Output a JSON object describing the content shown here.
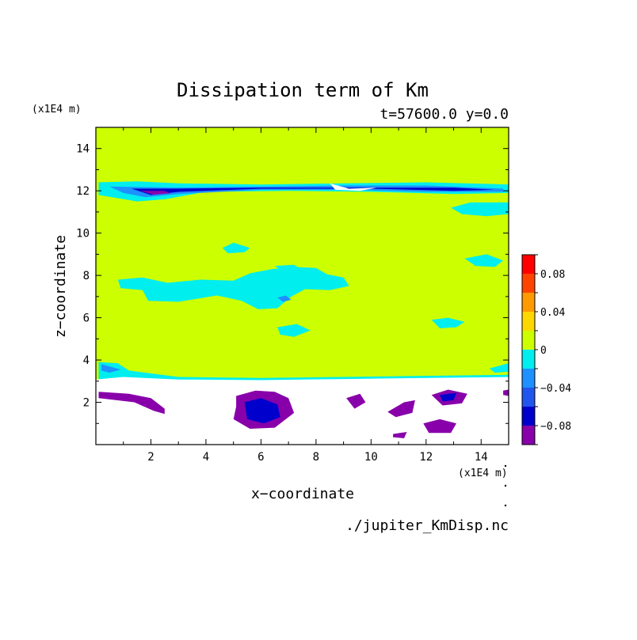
{
  "chart_data": {
    "type": "heatmap",
    "title": "Dissipation term of Km",
    "subtitle": "t=57600.0 y=0.0",
    "xlabel": "x−coordinate",
    "ylabel": "z−coordinate",
    "x_unit": "(x1E4 m)",
    "y_unit": "(x1E4 m)",
    "source_file": "./jupiter_KmDisp.nc",
    "xlim": [
      0,
      15
    ],
    "ylim": [
      0,
      15
    ],
    "x_ticks": [
      2,
      4,
      6,
      8,
      10,
      12,
      14
    ],
    "y_ticks": [
      2,
      4,
      6,
      8,
      10,
      12,
      14
    ],
    "x_tick_labels": [
      "2",
      "4",
      "6",
      "8",
      "10",
      "12",
      "14"
    ],
    "y_tick_labels": [
      "2",
      "4",
      "6",
      "8",
      "10",
      "12",
      "14"
    ],
    "colorbar": {
      "levels": [
        -0.1,
        -0.08,
        -0.06,
        -0.04,
        -0.02,
        0,
        0.02,
        0.04,
        0.06,
        0.08,
        0.1
      ],
      "colors": [
        "#8800aa",
        "#0000cc",
        "#2255ee",
        "#1e90ff",
        "#00eeee",
        "#ccff00",
        "#ffd700",
        "#ff9900",
        "#ff4400",
        "#ff0000",
        "#ffaaaa"
      ],
      "labels": [
        {
          "value": -0.08,
          "text": "−0.08"
        },
        {
          "value": -0.04,
          "text": "−0.04"
        },
        {
          "value": 0,
          "text": "0"
        },
        {
          "value": 0.04,
          "text": "0.04"
        },
        {
          "value": 0.08,
          "text": "0.08"
        }
      ]
    },
    "background_value_color": "#ccff00",
    "undefined_region_color": "#ffffff",
    "regions": [
      {
        "level": -0.02,
        "points": [
          [
            0.1,
            12.4
          ],
          [
            1.5,
            12.45
          ],
          [
            3,
            12.35
          ],
          [
            6,
            12.3
          ],
          [
            9,
            12.35
          ],
          [
            12,
            12.4
          ],
          [
            15,
            12.3
          ],
          [
            15,
            11.9
          ],
          [
            13,
            11.85
          ],
          [
            10,
            11.95
          ],
          [
            7,
            12.0
          ],
          [
            4,
            11.95
          ],
          [
            2.5,
            11.6
          ],
          [
            1.5,
            11.5
          ],
          [
            0.1,
            11.8
          ]
        ]
      },
      {
        "level": -0.04,
        "points": [
          [
            0.5,
            12.2
          ],
          [
            3,
            12.15
          ],
          [
            6,
            12.2
          ],
          [
            9,
            12.25
          ],
          [
            12,
            12.25
          ],
          [
            14.8,
            12.1
          ],
          [
            14.8,
            11.95
          ],
          [
            12,
            11.95
          ],
          [
            9,
            12.05
          ],
          [
            6,
            12.05
          ],
          [
            3,
            11.85
          ],
          [
            1.8,
            11.7
          ],
          [
            1,
            11.9
          ]
        ]
      },
      {
        "level": -0.08,
        "points": [
          [
            1.3,
            12.1
          ],
          [
            2.8,
            12.1
          ],
          [
            6,
            12.15
          ],
          [
            10,
            12.15
          ],
          [
            13,
            12.15
          ],
          [
            14.5,
            12.05
          ],
          [
            13,
            12.0
          ],
          [
            10,
            12.1
          ],
          [
            6,
            12.1
          ],
          [
            3,
            11.95
          ],
          [
            2,
            11.8
          ]
        ]
      },
      {
        "level": -0.1,
        "points": [
          [
            1.6,
            12.0
          ],
          [
            2.5,
            12.0
          ],
          [
            2.7,
            11.88
          ],
          [
            2.1,
            11.82
          ]
        ]
      },
      {
        "level": -0.02,
        "points": [
          [
            12.9,
            11.2
          ],
          [
            13.6,
            11.45
          ],
          [
            15,
            11.45
          ],
          [
            15,
            10.9
          ],
          [
            14.2,
            10.8
          ],
          [
            13.3,
            10.9
          ]
        ]
      },
      {
        "level": -0.02,
        "points": [
          [
            4.6,
            9.3
          ],
          [
            5.0,
            9.55
          ],
          [
            5.6,
            9.3
          ],
          [
            5.4,
            9.1
          ],
          [
            4.8,
            9.05
          ]
        ]
      },
      {
        "level": -0.02,
        "points": [
          [
            13.4,
            8.8
          ],
          [
            14.2,
            9.0
          ],
          [
            14.8,
            8.7
          ],
          [
            14.5,
            8.4
          ],
          [
            13.8,
            8.45
          ]
        ]
      },
      {
        "level": -0.02,
        "points": [
          [
            0.8,
            7.8
          ],
          [
            1.7,
            7.9
          ],
          [
            2.6,
            7.65
          ],
          [
            3.8,
            7.8
          ],
          [
            5.0,
            7.75
          ],
          [
            5.6,
            8.1
          ],
          [
            6.4,
            8.3
          ],
          [
            7.2,
            8.4
          ],
          [
            8.0,
            8.35
          ],
          [
            8.4,
            8.05
          ],
          [
            9.0,
            7.9
          ],
          [
            9.2,
            7.5
          ],
          [
            8.5,
            7.3
          ],
          [
            7.6,
            7.35
          ],
          [
            7.1,
            7.0
          ],
          [
            6.6,
            6.45
          ],
          [
            5.9,
            6.4
          ],
          [
            5.3,
            6.8
          ],
          [
            4.4,
            7.05
          ],
          [
            3.0,
            6.75
          ],
          [
            1.9,
            6.8
          ],
          [
            1.7,
            7.3
          ],
          [
            0.9,
            7.4
          ]
        ]
      },
      {
        "level": -0.04,
        "points": [
          [
            6.6,
            6.95
          ],
          [
            6.9,
            7.05
          ],
          [
            7.1,
            6.85
          ],
          [
            6.8,
            6.75
          ]
        ]
      },
      {
        "level": -0.02,
        "points": [
          [
            6.5,
            8.45
          ],
          [
            7.2,
            8.5
          ],
          [
            7.6,
            8.2
          ],
          [
            6.9,
            8.1
          ]
        ]
      },
      {
        "level": -0.02,
        "points": [
          [
            12.2,
            5.9
          ],
          [
            12.8,
            6.0
          ],
          [
            13.4,
            5.8
          ],
          [
            13.1,
            5.55
          ],
          [
            12.5,
            5.5
          ]
        ]
      },
      {
        "level": -0.02,
        "points": [
          [
            6.6,
            5.55
          ],
          [
            7.3,
            5.7
          ],
          [
            7.8,
            5.4
          ],
          [
            7.2,
            5.1
          ],
          [
            6.7,
            5.2
          ]
        ]
      },
      {
        "level": -0.02,
        "points": [
          [
            0.1,
            3.9
          ],
          [
            0.8,
            3.85
          ],
          [
            1.2,
            3.5
          ],
          [
            3,
            3.2
          ],
          [
            6,
            3.15
          ],
          [
            9,
            3.2
          ],
          [
            12,
            3.25
          ],
          [
            15,
            3.3
          ],
          [
            15,
            3.05
          ],
          [
            13,
            2.85
          ],
          [
            11,
            2.75
          ],
          [
            9,
            2.65
          ],
          [
            7,
            2.85
          ],
          [
            5,
            2.9
          ],
          [
            3.5,
            2.4
          ],
          [
            2.5,
            2.6
          ],
          [
            1.5,
            2.9
          ],
          [
            0.1,
            3.1
          ]
        ]
      },
      {
        "level": -0.04,
        "points": [
          [
            0.2,
            3.8
          ],
          [
            0.9,
            3.55
          ],
          [
            0.5,
            3.4
          ],
          [
            0.2,
            3.5
          ]
        ]
      },
      {
        "level": -0.02,
        "points": [
          [
            14.3,
            3.6
          ],
          [
            15,
            3.85
          ],
          [
            15,
            3.45
          ],
          [
            14.5,
            3.4
          ]
        ]
      }
    ],
    "missing_regions": [
      {
        "points": [
          [
            0,
            3.08
          ],
          [
            1.0,
            3.2
          ],
          [
            3.0,
            3.08
          ],
          [
            6.0,
            3.05
          ],
          [
            9.0,
            3.1
          ],
          [
            12.0,
            3.15
          ],
          [
            15,
            3.2
          ],
          [
            15,
            0
          ],
          [
            0,
            0
          ]
        ]
      },
      {
        "points": [
          [
            8.5,
            12.35
          ],
          [
            9.2,
            12.1
          ],
          [
            10.2,
            12.15
          ],
          [
            9.6,
            12.0
          ],
          [
            8.7,
            12.05
          ]
        ]
      }
    ],
    "below_regions": [
      {
        "level": -0.1,
        "points": [
          [
            0.1,
            2.5
          ],
          [
            1.2,
            2.4
          ],
          [
            2.0,
            2.2
          ],
          [
            2.5,
            1.7
          ],
          [
            2.5,
            1.45
          ],
          [
            2.1,
            1.6
          ],
          [
            1.4,
            2.0
          ],
          [
            0.1,
            2.2
          ]
        ]
      },
      {
        "level": -0.1,
        "points": [
          [
            5.1,
            2.3
          ],
          [
            5.8,
            2.55
          ],
          [
            6.5,
            2.5
          ],
          [
            7.0,
            2.2
          ],
          [
            7.2,
            1.5
          ],
          [
            6.5,
            0.8
          ],
          [
            5.6,
            0.75
          ],
          [
            5.0,
            1.2
          ],
          [
            5.1,
            1.8
          ]
        ]
      },
      {
        "level": -0.08,
        "points": [
          [
            5.4,
            2.0
          ],
          [
            6.0,
            2.2
          ],
          [
            6.6,
            1.9
          ],
          [
            6.7,
            1.3
          ],
          [
            6.1,
            1.0
          ],
          [
            5.5,
            1.2
          ]
        ]
      },
      {
        "level": -0.1,
        "points": [
          [
            11.2,
            2.0
          ],
          [
            11.6,
            2.1
          ],
          [
            11.5,
            1.5
          ],
          [
            10.9,
            1.3
          ],
          [
            10.6,
            1.55
          ]
        ]
      },
      {
        "level": -0.1,
        "points": [
          [
            12.2,
            2.35
          ],
          [
            12.8,
            2.6
          ],
          [
            13.5,
            2.4
          ],
          [
            13.3,
            1.95
          ],
          [
            12.6,
            1.85
          ]
        ]
      },
      {
        "level": -0.08,
        "points": [
          [
            12.5,
            2.35
          ],
          [
            13.1,
            2.45
          ],
          [
            13.0,
            2.1
          ],
          [
            12.6,
            2.05
          ]
        ]
      },
      {
        "level": -0.1,
        "points": [
          [
            11.9,
            1.0
          ],
          [
            12.5,
            1.2
          ],
          [
            13.1,
            1.0
          ],
          [
            12.9,
            0.55
          ],
          [
            12.1,
            0.55
          ]
        ]
      },
      {
        "level": -0.1,
        "points": [
          [
            10.8,
            0.5
          ],
          [
            11.3,
            0.6
          ],
          [
            11.2,
            0.3
          ],
          [
            10.8,
            0.35
          ]
        ]
      },
      {
        "level": -0.1,
        "points": [
          [
            14.8,
            2.55
          ],
          [
            15,
            2.6
          ],
          [
            15,
            2.3
          ],
          [
            14.8,
            2.35
          ]
        ]
      },
      {
        "level": -0.1,
        "points": [
          [
            9.1,
            2.2
          ],
          [
            9.6,
            2.4
          ],
          [
            9.8,
            2.0
          ],
          [
            9.4,
            1.7
          ]
        ]
      }
    ]
  }
}
